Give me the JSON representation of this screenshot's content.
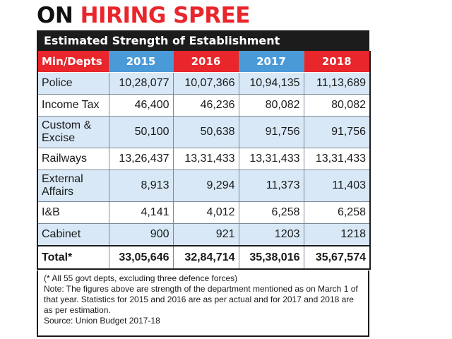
{
  "headline": {
    "part1": "ON ",
    "part2": "HIRING SPREE"
  },
  "subtitle": "Estimated Strength of Establishment",
  "colors": {
    "red": "#e8262b",
    "blue": "#4a9ad8",
    "dark": "#1c1c1c",
    "row_tint": "#d8e8f6"
  },
  "chart_data": {
    "type": "table",
    "title": "Estimated Strength of Establishment",
    "columns": [
      "Min/Depts",
      "2015",
      "2016",
      "2017",
      "2018"
    ],
    "rows": [
      {
        "dept": "Police",
        "values": [
          "10,28,077",
          "10,07,366",
          "10,94,135",
          "11,13,689"
        ]
      },
      {
        "dept": "Income Tax",
        "values": [
          "46,400",
          "46,236",
          "80,082",
          "80,082"
        ]
      },
      {
        "dept": "Custom & Excise",
        "values": [
          "50,100",
          "50,638",
          "91,756",
          "91,756"
        ]
      },
      {
        "dept": "Railways",
        "values": [
          "13,26,437",
          "13,31,433",
          "13,31,433",
          "13,31,433"
        ]
      },
      {
        "dept": "External Affairs",
        "values": [
          "8,913",
          "9,294",
          "11,373",
          "11,403"
        ]
      },
      {
        "dept": "I&B",
        "values": [
          "4,141",
          "4,012",
          "6,258",
          "6,258"
        ]
      },
      {
        "dept": "Cabinet",
        "values": [
          "900",
          "921",
          "1203",
          "1218"
        ]
      }
    ],
    "total": {
      "label": "Total*",
      "values": [
        "33,05,646",
        "32,84,714",
        "35,38,016",
        "35,67,574"
      ]
    }
  },
  "notes": {
    "footnote": "(* All 55 govt depts, excluding three defence forces)",
    "note": "Note: The figures above are strength of the department mentioned as on March 1 of that year. Statistics for 2015 and 2016 are as per actual and for 2017 and 2018 are as per estimation.",
    "source": "Source: Union Budget 2017-18"
  }
}
